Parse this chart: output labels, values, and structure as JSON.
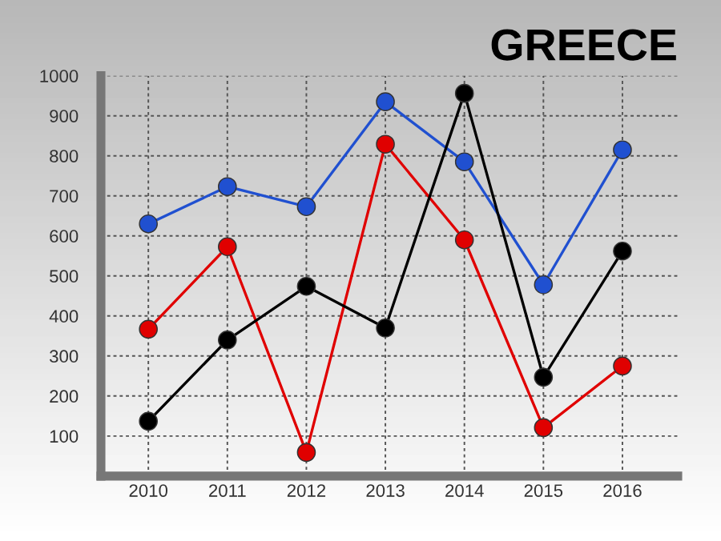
{
  "chart_data": {
    "type": "line",
    "title": "GREECE",
    "categories": [
      "2010",
      "2011",
      "2012",
      "2013",
      "2014",
      "2015",
      "2016"
    ],
    "series": [
      {
        "color": "#2050d0",
        "values": [
          630,
          723,
          673,
          935,
          785,
          478,
          815
        ]
      },
      {
        "color": "#e00000",
        "values": [
          367,
          573,
          59,
          829,
          590,
          121,
          275
        ]
      },
      {
        "color": "#000000",
        "values": [
          137,
          340,
          474,
          370,
          956,
          247,
          562
        ]
      }
    ],
    "ylim": [
      0,
      1000
    ],
    "yticks": [
      {
        "value": 0,
        "label": null
      },
      100,
      200,
      300,
      400,
      500,
      600,
      700,
      800,
      900,
      1000
    ],
    "grid": true,
    "marker": "circle",
    "line_style": "solid"
  }
}
